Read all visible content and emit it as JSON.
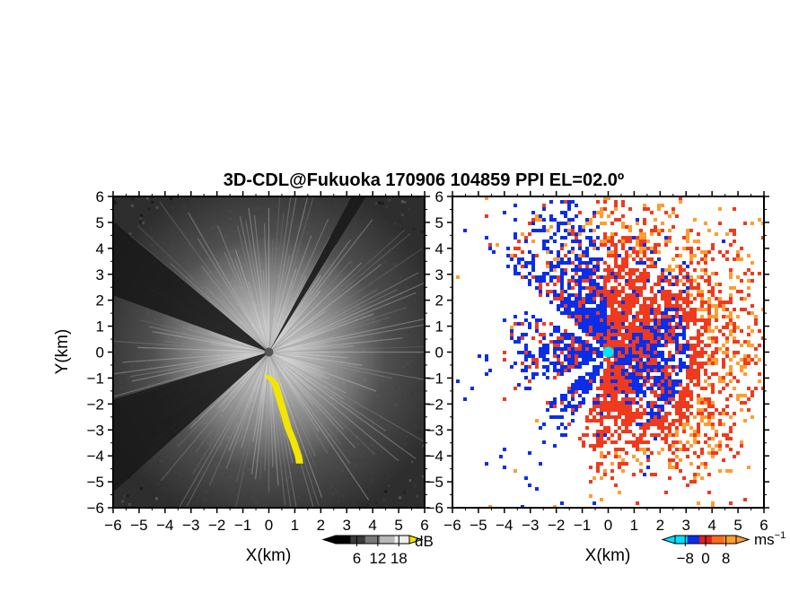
{
  "chart_data": {
    "type": "heatmap",
    "title": "3D-CDL@Fukuoka 170906 104859 PPI EL=02.0º",
    "panels": [
      {
        "id": "reflectivity",
        "xlabel": "X(km)",
        "ylabel": "Y(km)",
        "xlim": [
          -6,
          6
        ],
        "ylim": [
          -6,
          6
        ],
        "ticks": [
          "−6",
          "−5",
          "−4",
          "−3",
          "−2",
          "−1",
          "0",
          "1",
          "2",
          "3",
          "4",
          "5",
          "6"
        ],
        "colorbar": {
          "unit": "dB",
          "tick_labels": [
            "6",
            "12",
            "18"
          ],
          "tick_values": [
            6,
            12,
            18
          ],
          "range": [
            0,
            21
          ],
          "colors": [
            "#000000",
            "#3a3a3a",
            "#7a7a7a",
            "#b8b8b8",
            "#eeeeee"
          ],
          "overflow_color": "#f2e600"
        },
        "blocked_sectors_deg": [
          [
            140,
            160
          ],
          [
            197,
            222
          ],
          [
            58,
            62
          ]
        ],
        "yellow_band": [
          [
            -0.1,
            -0.9
          ],
          [
            0.2,
            -1.2
          ],
          [
            0.5,
            -2.2
          ],
          [
            0.7,
            -2.9
          ],
          [
            0.9,
            -3.4
          ],
          [
            1.1,
            -4.0
          ],
          [
            1.15,
            -4.3
          ]
        ]
      },
      {
        "id": "doppler_velocity",
        "xlabel": "X(km)",
        "ylabel": "",
        "xlim": [
          -6,
          6
        ],
        "ylim": [
          -6,
          6
        ],
        "ticks": [
          "−6",
          "−5",
          "−4",
          "−3",
          "−2",
          "−1",
          "0",
          "1",
          "2",
          "3",
          "4",
          "5",
          "6"
        ],
        "colorbar": {
          "unit": "ms",
          "unit_exponent": "−1",
          "tick_labels": [
            "−8",
            "0",
            "8"
          ],
          "tick_values": [
            -8,
            0,
            8
          ],
          "range": [
            -12,
            12
          ],
          "colors": [
            "#00e0ff",
            "#0a2ee8",
            "#e0201a",
            "#ff6a1a",
            "#ff9d30"
          ]
        },
        "approaching_color": "#0a2ee8",
        "receding_color": "#f03a1e",
        "far_receding_color": "#ff9d30",
        "site_marker_color": "#00e6ff"
      }
    ]
  }
}
